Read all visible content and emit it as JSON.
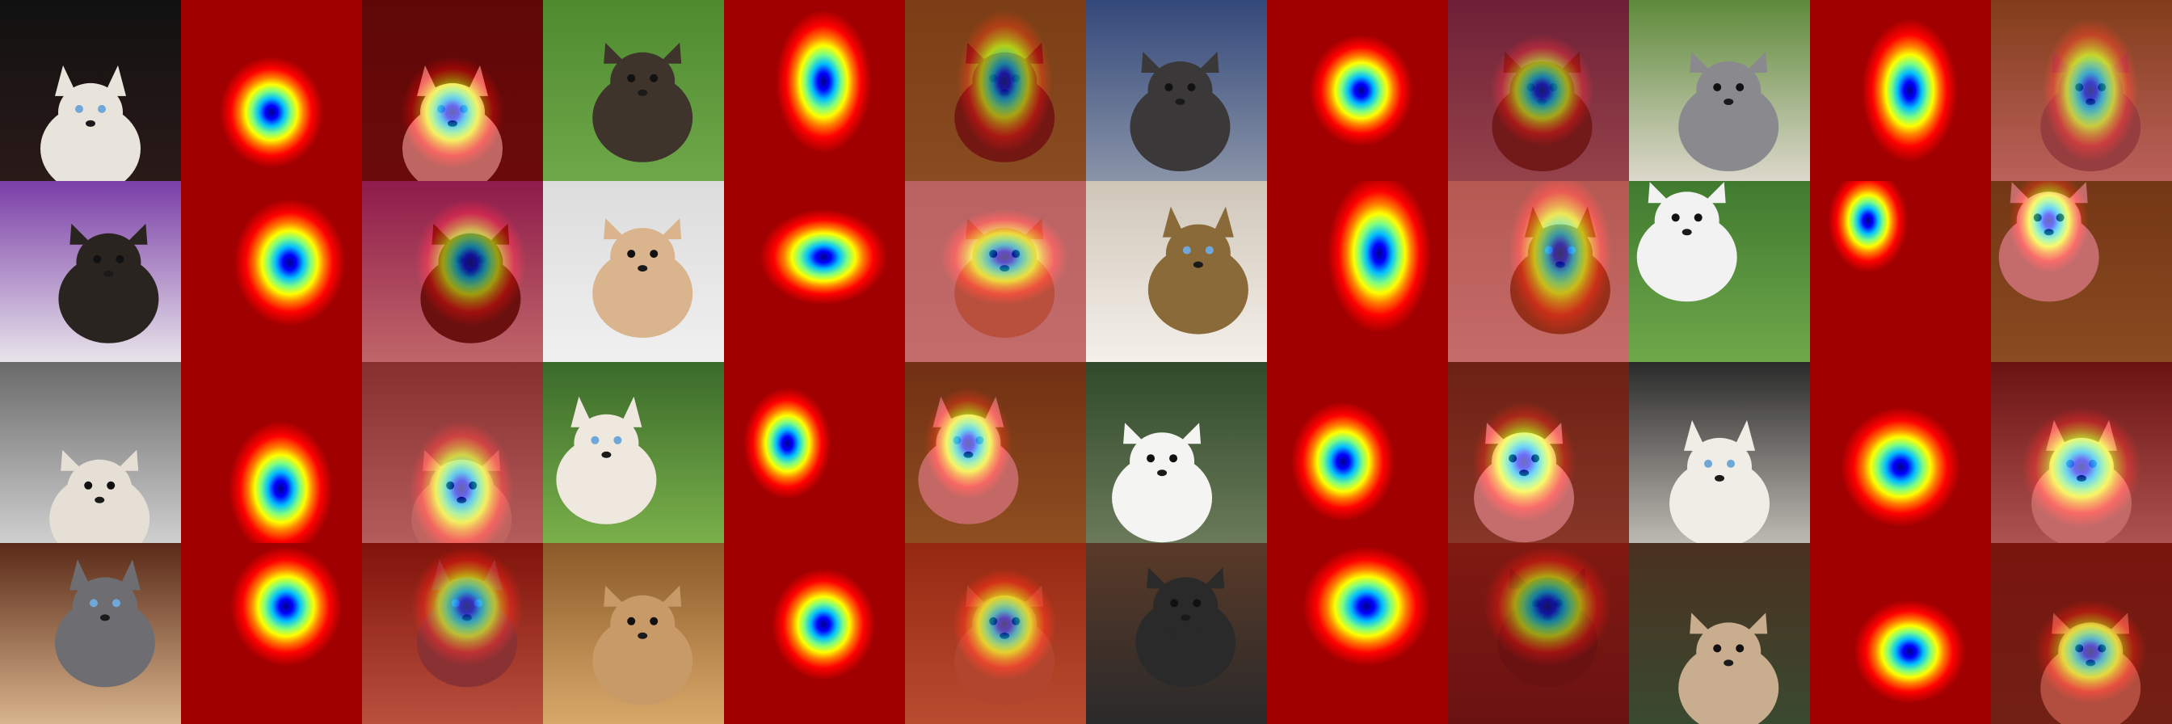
{
  "figure": {
    "rows": 4,
    "triplets_per_row": 4,
    "panel_order": [
      "photo",
      "heatmap",
      "overlay"
    ],
    "colormap": [
      "#00008b",
      "#0000ff",
      "#00bfff",
      "#7fff7f",
      "#ffff00",
      "#ff7f00",
      "#ff0000",
      "#a00000"
    ]
  },
  "samples": [
    {
      "subject": "cat",
      "bg": [
        "#111111",
        "#2a1a18"
      ],
      "body": "#e8e4dc",
      "focus": [
        0.5,
        0.62
      ],
      "spread": [
        0.26,
        0.28
      ]
    },
    {
      "subject": "dog",
      "bg": [
        "#4f8a2f",
        "#6fa84a"
      ],
      "body": "#3e342c",
      "focus": [
        0.55,
        0.45
      ],
      "spread": [
        0.24,
        0.36
      ]
    },
    {
      "subject": "dog",
      "bg": [
        "#33487a",
        "#8a94a8"
      ],
      "body": "#3a3838",
      "focus": [
        0.52,
        0.5
      ],
      "spread": [
        0.26,
        0.28
      ]
    },
    {
      "subject": "dog",
      "bg": [
        "#5e8a3a",
        "#ddd8cc"
      ],
      "body": "#8a8a8e",
      "focus": [
        0.55,
        0.5
      ],
      "spread": [
        0.24,
        0.36
      ]
    },
    {
      "subject": "dog",
      "bg": [
        "#7a3ea8",
        "#e8e4ea"
      ],
      "body": "#2a2420",
      "focus": [
        0.6,
        0.45
      ],
      "spread": [
        0.28,
        0.32
      ]
    },
    {
      "subject": "dog",
      "bg": [
        "#dcdcdc",
        "#f0f0f0"
      ],
      "body": "#d9b48c",
      "focus": [
        0.55,
        0.42
      ],
      "spread": [
        0.32,
        0.24
      ]
    },
    {
      "subject": "cat",
      "bg": [
        "#cfc6b8",
        "#f4f0ea"
      ],
      "body": "#8a6a38",
      "focus": [
        0.62,
        0.4
      ],
      "spread": [
        0.26,
        0.4
      ]
    },
    {
      "subject": "dog",
      "bg": [
        "#3f7a2f",
        "#6fa84a"
      ],
      "body": "#f2f2f2",
      "focus": [
        0.32,
        0.22
      ],
      "spread": [
        0.2,
        0.26
      ]
    },
    {
      "subject": "dog",
      "bg": [
        "#6a6a6a",
        "#cfcfcf"
      ],
      "body": "#e6dfd6",
      "focus": [
        0.55,
        0.7
      ],
      "spread": [
        0.26,
        0.34
      ]
    },
    {
      "subject": "cat",
      "bg": [
        "#3a6a2a",
        "#7ab04a"
      ],
      "body": "#efe8df",
      "focus": [
        0.35,
        0.45
      ],
      "spread": [
        0.22,
        0.28
      ]
    },
    {
      "subject": "dog",
      "bg": [
        "#2f4a2a",
        "#6a7a5a"
      ],
      "body": "#f4f4f2",
      "focus": [
        0.42,
        0.55
      ],
      "spread": [
        0.26,
        0.3
      ]
    },
    {
      "subject": "cat",
      "bg": [
        "#2a2a2a",
        "#bdbab2"
      ],
      "body": "#f0ece6",
      "focus": [
        0.5,
        0.58
      ],
      "spread": [
        0.3,
        0.3
      ]
    },
    {
      "subject": "cat",
      "bg": [
        "#5a2a18",
        "#d8b48c"
      ],
      "body": "#6e6e72",
      "focus": [
        0.58,
        0.35
      ],
      "spread": [
        0.28,
        0.3
      ]
    },
    {
      "subject": "dog",
      "bg": [
        "#8a5a28",
        "#d8a86a"
      ],
      "body": "#c89a68",
      "focus": [
        0.55,
        0.45
      ],
      "spread": [
        0.26,
        0.28
      ]
    },
    {
      "subject": "dog",
      "bg": [
        "#5a3a28",
        "#2a2a2a"
      ],
      "body": "#2a2a2a",
      "focus": [
        0.55,
        0.35
      ],
      "spread": [
        0.32,
        0.3
      ]
    },
    {
      "subject": "dog",
      "bg": [
        "#4a3020",
        "#3a4a30"
      ],
      "body": "#c8ae8e",
      "focus": [
        0.55,
        0.6
      ],
      "spread": [
        0.28,
        0.26
      ]
    }
  ]
}
